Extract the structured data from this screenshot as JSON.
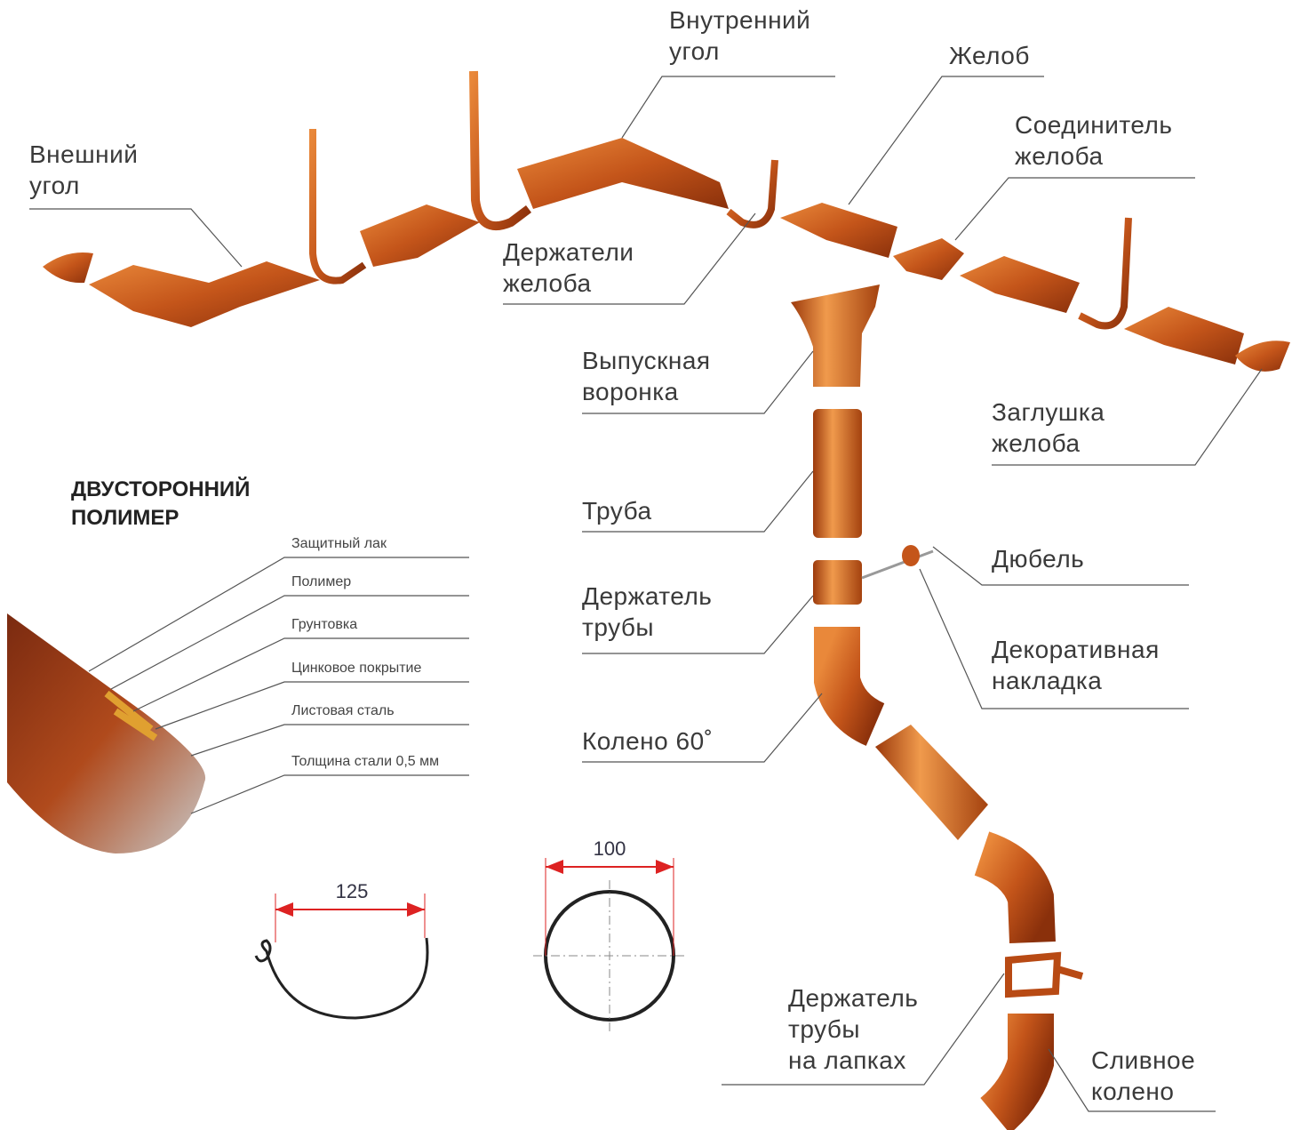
{
  "labels": [
    {
      "lines": [
        "Внешний",
        "угол"
      ]
    },
    {
      "lines": [
        "Внутренний",
        "угол"
      ]
    },
    {
      "lines": [
        "Желоб"
      ]
    },
    {
      "lines": [
        "Соединитель",
        "желоба"
      ]
    },
    {
      "lines": [
        "Держатели",
        "желоба"
      ]
    },
    {
      "lines": [
        "Выпускная",
        "воронка"
      ]
    },
    {
      "lines": [
        "Заглушка",
        "желоба"
      ]
    },
    {
      "lines": [
        "Труба"
      ]
    },
    {
      "lines": [
        "Дюбель"
      ]
    },
    {
      "lines": [
        "Держатель",
        "трубы"
      ]
    },
    {
      "lines": [
        "Декоративная",
        "накладка"
      ]
    },
    {
      "lines": [
        "Колено 60˚"
      ]
    },
    {
      "lines": [
        "Держатель",
        "трубы",
        "на лапках"
      ]
    },
    {
      "lines": [
        "Сливное",
        "колено"
      ]
    }
  ],
  "coating": {
    "title": [
      "ДВУСТОРОННИЙ",
      "ПОЛИМЕР"
    ],
    "layers": [
      "Защитный лак",
      "Полимер",
      "Грунтовка",
      "Цинковое покрытие",
      "Листовая сталь",
      "Толщина стали 0,5 мм"
    ]
  },
  "dimensions": {
    "gutter": "125",
    "pipe": "100"
  }
}
